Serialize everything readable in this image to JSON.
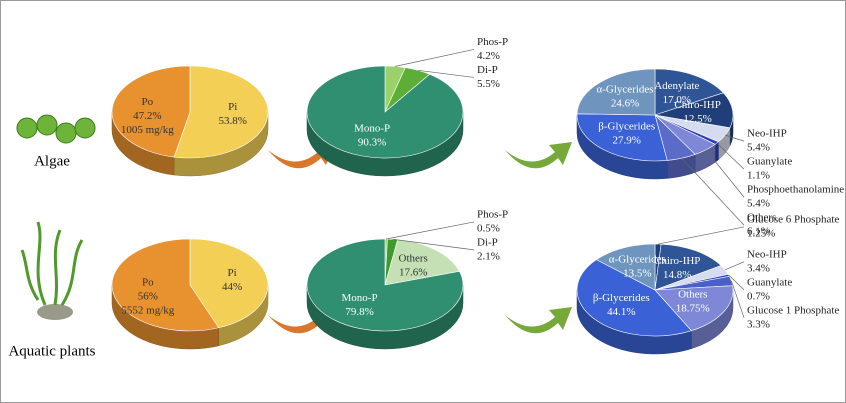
{
  "row_labels": [
    "Algae",
    "Aquatic plants"
  ],
  "chart_data": [
    {
      "type": "pie",
      "categories": [
        "Pi",
        "Po"
      ],
      "values": [
        53.8,
        47.2
      ],
      "value_labels": [
        "53.8%",
        "47.2%"
      ],
      "colors": [
        "#f3cf56",
        "#e8912f"
      ],
      "annotation": "1005 mg/kg"
    },
    {
      "type": "pie",
      "categories": [
        "Phos-P",
        "Di-P",
        "Mono-P"
      ],
      "values": [
        4.2,
        5.5,
        90.3
      ],
      "value_labels": [
        "4.2%",
        "5.5%",
        "90.3%"
      ],
      "colors": [
        "#9bd16a",
        "#5cae36",
        "#2f8f70"
      ]
    },
    {
      "type": "pie",
      "categories": [
        "Adenylate",
        "Chiro-IHP",
        "Neo-IHP",
        "Guanylate",
        "Phosphoethanolamine",
        "Others",
        "β-Glycerides",
        "α-Glycerides"
      ],
      "values": [
        17.0,
        12.5,
        5.4,
        1.1,
        5.4,
        6.1,
        27.9,
        24.6
      ],
      "value_labels": [
        "17.0%",
        "12.5%",
        "5.4%",
        "1.1%",
        "5.4%",
        "6.1%",
        "27.9%",
        "24.6%"
      ],
      "colors": [
        "#2f5597",
        "#1f3e7a",
        "#d6dcef",
        "#2a3fb8",
        "#7e88d6",
        "#5b6cc8",
        "#3a62d6",
        "#6f95bf"
      ]
    },
    {
      "type": "pie",
      "categories": [
        "Pi",
        "Po"
      ],
      "values": [
        44,
        56
      ],
      "value_labels": [
        "44%",
        "56%"
      ],
      "colors": [
        "#f3cf56",
        "#e8912f"
      ],
      "annotation": "5552 mg/kg"
    },
    {
      "type": "pie",
      "categories": [
        "Phos-P",
        "Di-P",
        "Others",
        "Mono-P"
      ],
      "values": [
        0.5,
        2.1,
        17.6,
        79.8
      ],
      "value_labels": [
        "0.5%",
        "2.1%",
        "17.6%",
        "79.8%"
      ],
      "colors": [
        "#9bd16a",
        "#3f9a2e",
        "#c5e0b4",
        "#2f8f70"
      ]
    },
    {
      "type": "pie",
      "categories": [
        "Glucose 6 Phosphate",
        "Chiro-IHP",
        "Neo-IHP",
        "Guanylate",
        "Glucose 1 Phosphate",
        "Others",
        "β-Glycerides",
        "α-Glycerides"
      ],
      "values": [
        1.25,
        14.8,
        3.4,
        0.7,
        3.3,
        18.75,
        44.1,
        13.5
      ],
      "value_labels": [
        "1.25%",
        "14.8%",
        "3.4%",
        "0.7%",
        "3.3%",
        "18.75%",
        "44.1%",
        "13.5%"
      ],
      "colors": [
        "#1f3e7a",
        "#2f5597",
        "#d6dcef",
        "#2a3fb8",
        "#4a5fc8",
        "#7e88d6",
        "#3a62d6",
        "#6f95bf"
      ]
    }
  ]
}
